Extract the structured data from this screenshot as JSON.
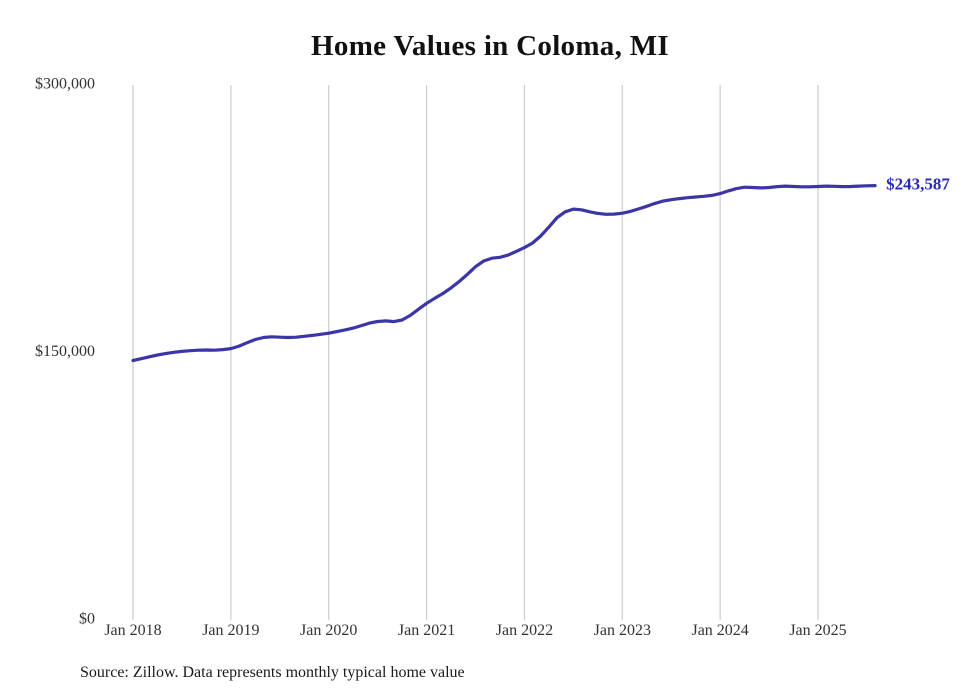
{
  "title": "Home Values in Coloma, MI",
  "source_note": "Source: Zillow. Data represents monthly typical home value",
  "colors": {
    "line": "#3b35a8",
    "end_label": "#2a2ab8",
    "grid": "#cccccc",
    "axis_text": "#333333"
  },
  "chart_data": {
    "type": "line",
    "title": "Home Values in Coloma, MI",
    "x_start": "2018-01",
    "x_end": "2025-08",
    "x_unit": "month",
    "x_tick_labels": [
      "Jan 2018",
      "Jan 2019",
      "Jan 2020",
      "Jan 2021",
      "Jan 2022",
      "Jan 2023",
      "Jan 2024",
      "Jan 2025"
    ],
    "x_tick_month_indices": [
      0,
      12,
      24,
      36,
      48,
      60,
      72,
      84
    ],
    "y_ticks": [
      0,
      150000,
      300000
    ],
    "y_tick_labels": [
      "$0",
      "$150,000",
      "$300,000"
    ],
    "ylim": [
      0,
      300000
    ],
    "grid": "vertical-only",
    "legend": "none",
    "end_value": 243587,
    "end_value_label": "$243,587",
    "series": [
      {
        "name": "Typical home value",
        "values": [
          145500,
          146500,
          147600,
          148600,
          149400,
          150100,
          150600,
          151000,
          151300,
          151400,
          151300,
          151600,
          152200,
          153600,
          155500,
          157300,
          158400,
          158800,
          158600,
          158400,
          158600,
          159100,
          159600,
          160200,
          160800,
          161700,
          162700,
          163700,
          165100,
          166500,
          167400,
          167700,
          167300,
          168200,
          170800,
          174200,
          177600,
          180400,
          183100,
          186200,
          189800,
          193800,
          198100,
          201300,
          202900,
          203400,
          204600,
          206700,
          208800,
          211400,
          215300,
          220300,
          225600,
          228900,
          230400,
          230000,
          228900,
          228000,
          227500,
          227600,
          228100,
          229100,
          230500,
          232000,
          233600,
          234900,
          235700,
          236300,
          236800,
          237200,
          237600,
          238100,
          239100,
          240600,
          241900,
          242700,
          242500,
          242300,
          242500,
          243000,
          243300,
          243100,
          242900,
          242900,
          243100,
          243300,
          243200,
          243000,
          243100,
          243300,
          243450,
          243587
        ]
      }
    ]
  }
}
